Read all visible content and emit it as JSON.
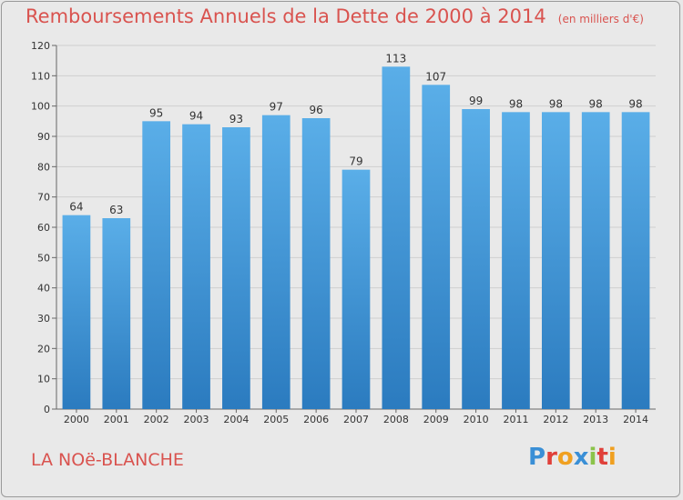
{
  "chart_data": {
    "type": "bar",
    "title": "Remboursements Annuels de la Dette de 2000 à 2014",
    "unit_label": "(en milliers d'€)",
    "subject": "LA NOë-BLANCHE",
    "categories": [
      "2000",
      "2001",
      "2002",
      "2003",
      "2004",
      "2005",
      "2006",
      "2007",
      "2008",
      "2009",
      "2010",
      "2011",
      "2012",
      "2013",
      "2014"
    ],
    "values": [
      64,
      63,
      95,
      94,
      93,
      97,
      96,
      79,
      113,
      107,
      99,
      98,
      98,
      98,
      98
    ],
    "ylim": [
      0,
      120
    ],
    "yticks": [
      0,
      10,
      20,
      30,
      40,
      50,
      60,
      70,
      80,
      90,
      100,
      110,
      120
    ],
    "grid": true,
    "bar_color_top": "#5aaee8",
    "bar_color_bottom": "#2b7bbf"
  },
  "brand": {
    "name": "Proxiti",
    "letters": [
      {
        "ch": "P",
        "color": "#3a8fd6"
      },
      {
        "ch": "r",
        "color": "#e0403a"
      },
      {
        "ch": "o",
        "color": "#f0a020"
      },
      {
        "ch": "x",
        "color": "#3a8fd6"
      },
      {
        "ch": "i",
        "color": "#8bc34a"
      },
      {
        "ch": "t",
        "color": "#e0403a"
      },
      {
        "ch": "i",
        "color": "#f0a020"
      }
    ]
  }
}
